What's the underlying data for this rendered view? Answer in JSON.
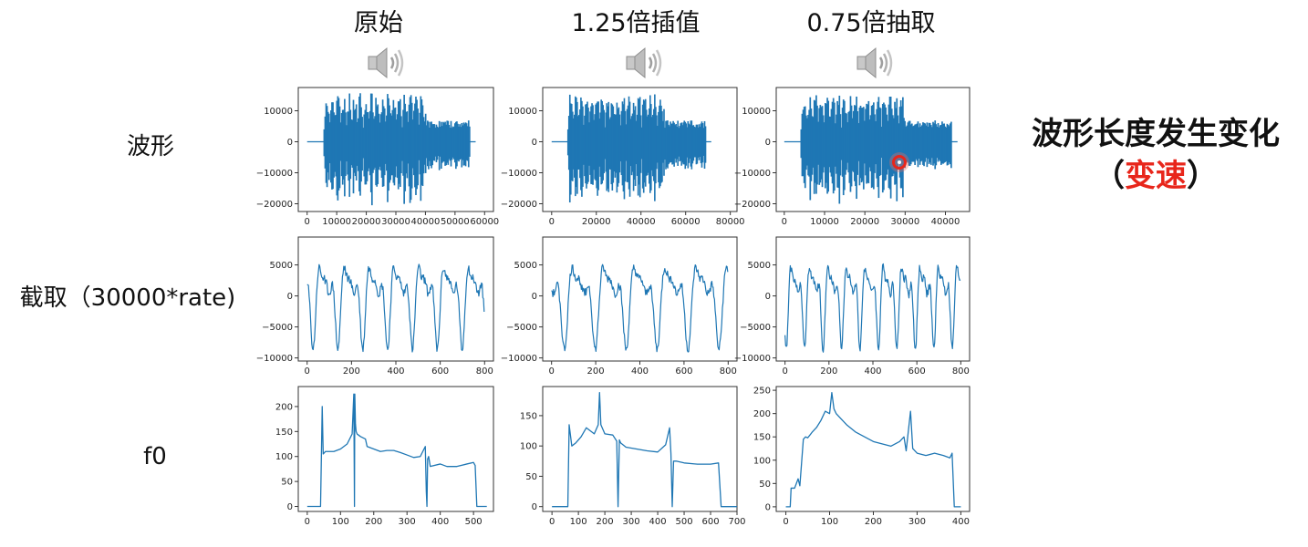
{
  "columns": [
    {
      "title": "原始"
    },
    {
      "title": "1.25倍插值"
    },
    {
      "title": "0.75倍抽取"
    }
  ],
  "rows": [
    {
      "label": "波形"
    },
    {
      "label": "截取（30000*rate)"
    },
    {
      "label": "f0"
    }
  ],
  "icons": {
    "speaker": "speaker-icon",
    "cursor": "recording-cursor-icon"
  },
  "note": {
    "line1": "波形长度发生变化",
    "open": "（",
    "highlight": "变速",
    "close": "）"
  },
  "colors": {
    "series": "#1f77b4",
    "highlight": "#e8261b"
  },
  "chart_data": [
    {
      "id": "wave-original",
      "type": "line",
      "x_ticks": [
        0,
        10000,
        20000,
        30000,
        40000,
        50000,
        60000
      ],
      "y_ticks": [
        -20000,
        -10000,
        0,
        10000
      ],
      "xlim": [
        -3000,
        63000
      ],
      "ylim": [
        -22500,
        17500
      ],
      "active_range": [
        5500,
        55000
      ],
      "amplitude_max": 16000,
      "amplitude_min": -21000,
      "quiet_segment": [
        40000,
        55000
      ]
    },
    {
      "id": "wave-interp-125",
      "type": "line",
      "x_ticks": [
        0,
        20000,
        40000,
        60000,
        80000
      ],
      "y_ticks": [
        -20000,
        -10000,
        0,
        10000
      ],
      "xlim": [
        -4000,
        83000
      ],
      "ylim": [
        -22500,
        17500
      ],
      "active_range": [
        7000,
        69000
      ],
      "amplitude_max": 16000,
      "amplitude_min": -21000,
      "quiet_segment": [
        50000,
        69000
      ]
    },
    {
      "id": "wave-decim-075",
      "type": "line",
      "x_ticks": [
        0,
        10000,
        20000,
        30000,
        40000
      ],
      "y_ticks": [
        -20000,
        -10000,
        0,
        10000
      ],
      "xlim": [
        -2000,
        46000
      ],
      "ylim": [
        -22500,
        17500
      ],
      "active_range": [
        4000,
        41500
      ],
      "amplitude_max": 16000,
      "amplitude_min": -21000,
      "quiet_segment": [
        30000,
        41500
      ]
    },
    {
      "id": "clip-original",
      "type": "line",
      "x_ticks": [
        0,
        200,
        400,
        600,
        800
      ],
      "y_ticks": [
        -10000,
        -5000,
        0,
        5000
      ],
      "xlim": [
        -40,
        840
      ],
      "ylim": [
        -10500,
        9500
      ],
      "period": 112
    },
    {
      "id": "clip-interp-125",
      "type": "line",
      "x_ticks": [
        0,
        200,
        400,
        600,
        800
      ],
      "y_ticks": [
        -10000,
        -5000,
        0,
        5000
      ],
      "xlim": [
        -40,
        840
      ],
      "ylim": [
        -10500,
        9500
      ],
      "period": 140
    },
    {
      "id": "clip-decim-075",
      "type": "line",
      "x_ticks": [
        0,
        200,
        400,
        600,
        800
      ],
      "y_ticks": [
        -10000,
        -5000,
        0,
        5000
      ],
      "xlim": [
        -40,
        840
      ],
      "ylim": [
        -10500,
        9500
      ],
      "period": 84
    },
    {
      "id": "f0-original",
      "type": "line",
      "x_ticks": [
        0,
        100,
        200,
        300,
        400,
        500
      ],
      "y_ticks": [
        0,
        50,
        100,
        150,
        200
      ],
      "xlim": [
        -27,
        560
      ],
      "ylim": [
        -10,
        240
      ],
      "x": [
        0,
        40,
        45,
        48,
        55,
        80,
        100,
        120,
        135,
        140,
        142,
        143,
        145,
        147,
        150,
        160,
        175,
        180,
        200,
        220,
        240,
        260,
        280,
        300,
        320,
        340,
        355,
        358,
        360,
        362,
        365,
        370,
        400,
        420,
        450,
        480,
        500,
        505,
        510,
        520,
        540
      ],
      "y": [
        0,
        0,
        200,
        105,
        110,
        110,
        115,
        125,
        145,
        225,
        0,
        225,
        165,
        150,
        145,
        140,
        135,
        120,
        115,
        110,
        112,
        112,
        108,
        103,
        98,
        100,
        120,
        30,
        0,
        95,
        100,
        80,
        85,
        80,
        80,
        85,
        88,
        82,
        0,
        0,
        0
      ]
    },
    {
      "id": "f0-interp-125",
      "type": "line",
      "x_ticks": [
        0,
        100,
        200,
        300,
        400,
        500,
        600,
        700
      ],
      "y_ticks": [
        0,
        50,
        100,
        150
      ],
      "xlim": [
        -35,
        700
      ],
      "ylim": [
        -8,
        198
      ],
      "x": [
        0,
        60,
        65,
        75,
        90,
        110,
        130,
        160,
        175,
        180,
        185,
        200,
        230,
        245,
        250,
        255,
        260,
        280,
        320,
        360,
        400,
        430,
        445,
        450,
        455,
        460,
        470,
        500,
        550,
        600,
        630,
        640,
        650,
        700
      ],
      "y": [
        0,
        0,
        135,
        100,
        105,
        115,
        130,
        120,
        135,
        188,
        135,
        120,
        118,
        108,
        0,
        110,
        105,
        98,
        95,
        92,
        90,
        102,
        130,
        88,
        0,
        75,
        75,
        72,
        70,
        70,
        72,
        0,
        0,
        0
      ]
    },
    {
      "id": "f0-decim-075",
      "type": "line",
      "x_ticks": [
        0,
        100,
        200,
        300,
        400
      ],
      "y_ticks": [
        0,
        50,
        100,
        150,
        200,
        250
      ],
      "xlim": [
        -22,
        420
      ],
      "ylim": [
        -10,
        258
      ],
      "x": [
        0,
        10,
        12,
        20,
        28,
        32,
        40,
        45,
        50,
        60,
        70,
        80,
        90,
        100,
        105,
        110,
        115,
        125,
        140,
        160,
        180,
        200,
        220,
        240,
        260,
        270,
        275,
        285,
        290,
        300,
        320,
        340,
        360,
        375,
        380,
        385,
        400
      ],
      "y": [
        0,
        0,
        40,
        40,
        60,
        45,
        145,
        150,
        148,
        160,
        170,
        185,
        205,
        200,
        245,
        210,
        200,
        190,
        175,
        160,
        150,
        140,
        135,
        130,
        140,
        150,
        120,
        205,
        125,
        115,
        110,
        115,
        110,
        105,
        115,
        0,
        0
      ]
    }
  ]
}
